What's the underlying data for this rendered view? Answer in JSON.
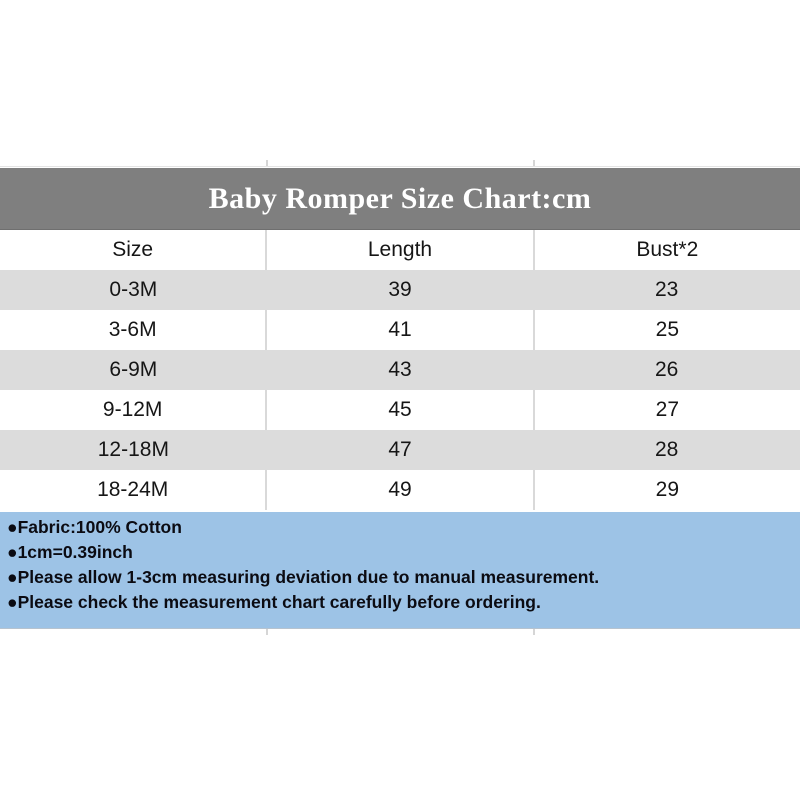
{
  "title_bar": {
    "text": "Baby Romper Size Chart:cm",
    "bg_color": "#7f7f7f",
    "text_color": "#ffffff"
  },
  "table": {
    "columns": [
      "Size",
      "Length",
      "Bust*2"
    ],
    "rows": [
      {
        "size": "0-3M",
        "length": "39",
        "bust2": "23"
      },
      {
        "size": "3-6M",
        "length": "41",
        "bust2": "25"
      },
      {
        "size": "6-9M",
        "length": "43",
        "bust2": "26"
      },
      {
        "size": "9-12M",
        "length": "45",
        "bust2": "27"
      },
      {
        "size": "12-18M",
        "length": "47",
        "bust2": "28"
      },
      {
        "size": "18-24M",
        "length": "49",
        "bust2": "29"
      }
    ],
    "alt_row_color": "#dcdcdc",
    "divider_color": "#d9d9d9"
  },
  "notes": {
    "bg_color": "#9dc3e6",
    "lines": [
      "●Fabric:100% Cotton",
      "●1cm=0.39inch",
      "●Please allow 1-3cm measuring deviation due to manual measurement.",
      "●Please check the measurement chart carefully before ordering."
    ]
  },
  "chart_data": {
    "type": "table",
    "title": "Baby Romper Size Chart:cm",
    "unit": "cm",
    "columns": [
      "Size",
      "Length",
      "Bust*2"
    ],
    "rows": [
      [
        "0-3M",
        39,
        23
      ],
      [
        "3-6M",
        41,
        25
      ],
      [
        "6-9M",
        43,
        26
      ],
      [
        "9-12M",
        45,
        27
      ],
      [
        "12-18M",
        47,
        28
      ],
      [
        "18-24M",
        49,
        29
      ]
    ],
    "notes": [
      "Fabric:100% Cotton",
      "1cm=0.39inch",
      "Please allow 1-3cm measuring deviation due to manual measurement.",
      "Please check the measurement chart carefully before ordering."
    ]
  }
}
